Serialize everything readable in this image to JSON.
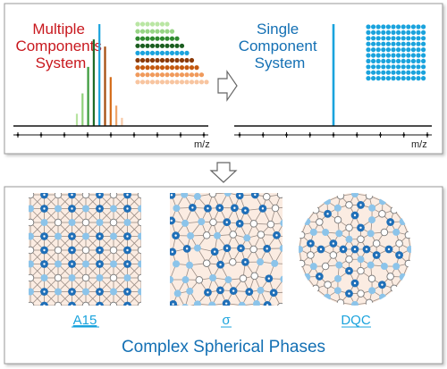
{
  "top_panel": {
    "multi_label_lines": [
      "Multiple",
      "Components",
      "System"
    ],
    "single_label_lines": [
      "Single",
      "Component",
      "System"
    ],
    "axis_label_left": "m/z",
    "axis_label_right": "m/z",
    "multi_peaks": [
      {
        "height": 0.12,
        "color": "#b7e3a0"
      },
      {
        "height": 0.32,
        "color": "#8fd07a"
      },
      {
        "height": 0.58,
        "color": "#3a9a3a"
      },
      {
        "height": 0.85,
        "color": "#1d6b28"
      },
      {
        "height": 1.0,
        "color": "#1aa3dd"
      },
      {
        "height": 0.78,
        "color": "#a34a0c"
      },
      {
        "height": 0.48,
        "color": "#d46a16"
      },
      {
        "height": 0.2,
        "color": "#f0a56a"
      },
      {
        "height": 0.08,
        "color": "#f7c9a6"
      }
    ],
    "bead_row_colors": [
      "#b9e6a3",
      "#97d485",
      "#2f8a2f",
      "#1b5e20",
      "#1aa3dd",
      "#8b3a08",
      "#c45a10",
      "#f09a5c",
      "#f8c5a0"
    ],
    "single_rows": 10,
    "single_color": "#1aa3dd"
  },
  "bottom_panel": {
    "phases": [
      {
        "name": "A15"
      },
      {
        "name": "σ"
      },
      {
        "name": "DQC"
      }
    ],
    "caption": "Complex Spherical Phases"
  },
  "colors": {
    "red": "#c8181e",
    "blue": "#1470b4",
    "dark_blue": "#1f6fb8",
    "light_blue": "#8cc4ea",
    "peach": "#f7dccb",
    "panel_border": "#999999"
  }
}
